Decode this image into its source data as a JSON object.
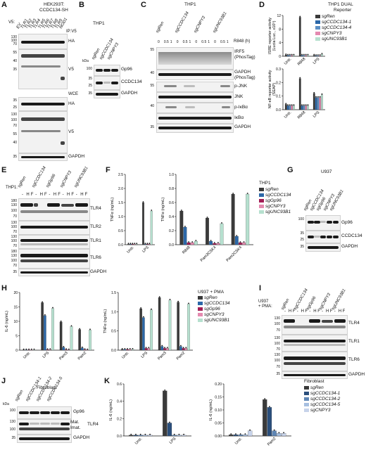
{
  "colors": {
    "sgRen": "#3a3a3a",
    "sgCCDC134": "#2b67a8",
    "sgCCDC134-4": "#5b8fc4",
    "sgGp96": "#a21d55",
    "sgCNPY3": "#e48ab0",
    "sgUNC93B1": "#b6e0cf",
    "sgCCDC134-1": "#2b4f7c",
    "sgCCDC134-2": "#5e86b5",
    "sgCCDC134-5": "#a6bfe0",
    "sgCNPY3_fib": "#c7d3ea"
  },
  "panels": {
    "A": {
      "letter": "A",
      "title": "HEK293T:",
      "title2": "CCDC134-SH",
      "ipv5": "IP:V5",
      "wce": "WCE",
      "v5": "V5:",
      "lanes": [
        "EV",
        "TLR1",
        "TLR2",
        "TLR3",
        "TLR4",
        "TLR5",
        "TLR6",
        "TLR7",
        "TLR8",
        "TLR9",
        "NOD1"
      ],
      "ha": "HA",
      "v5blot": "V5",
      "gapdh": "GAPDH",
      "mw_top": [
        "130",
        "100",
        "70",
        "55",
        "40",
        "35"
      ],
      "mw_ha": [
        "35",
        "25"
      ],
      "mw_v5": [
        "130",
        "100",
        "70",
        "55",
        "40"
      ],
      "mw_wce": [
        "35",
        "25",
        "130",
        "100",
        "70",
        "55",
        "40",
        "35"
      ]
    },
    "B": {
      "letter": "B",
      "title": "THP1",
      "lanes": [
        "sgRen",
        "sgCCDC134",
        "sgCNPY3"
      ],
      "rows": [
        "Gp96",
        "CCDC134",
        "GAPDH"
      ],
      "kda": "kDa",
      "mw": [
        "100",
        "35",
        "25",
        "35"
      ]
    },
    "C": {
      "letter": "C",
      "title": "THP1",
      "lanes": [
        "sgRen",
        "sgCCDC134",
        "sgCNPY3",
        "sgUNC93B1"
      ],
      "timepoints": [
        "0",
        "0.5",
        "1",
        "0",
        "0.5",
        "1",
        "0",
        "0.5",
        "1",
        "0",
        "0.5",
        "1"
      ],
      "r848": "R848 (h)",
      "rows": [
        "IRF5",
        "(PhosTag)",
        "GAPDH",
        "(PhosTag)",
        "p-JNK",
        "JNK",
        "p-IκBα",
        "IκBα",
        "GAPDH"
      ],
      "mw": [
        "55",
        "40",
        "55",
        "40",
        "35"
      ]
    },
    "D": {
      "letter": "D",
      "title": "THP1 DUAL",
      "title2": "Reporter",
      "legend": [
        "sgRen",
        "sgCCDC134-1",
        "sgCCDC134-4",
        "sgCNPY3",
        "sgUNC93B1"
      ],
      "ylabel_top": "ISRE reporter activity",
      "ylabel_top2": "(Lucia Luc., x10⁵)",
      "ylabel_bot": "NF-κB reporter activity",
      "ylabel_bot2": "(SEAP)",
      "ticks_top": [
        "0",
        "4",
        "8",
        "12"
      ],
      "ticks_bot": [
        "0.0",
        "0.1",
        "0.2",
        "0.3"
      ],
      "xcats": [
        "Untr.",
        "R848",
        "LPS"
      ]
    },
    "E": {
      "letter": "E",
      "title": "THP1:",
      "lanes": [
        "sgRen",
        "sgCCDC134",
        "sgGp96",
        "sgCNPY3",
        "sgUNC93B1"
      ],
      "hf": [
        "-",
        "H",
        "F",
        "-",
        "H",
        "F",
        "-",
        "H",
        "F",
        "-",
        "H",
        "F",
        "-",
        "H",
        "F"
      ],
      "rows": [
        "TLR4",
        "TLR2",
        "TLR1",
        "TLR6",
        "GAPDH"
      ],
      "mw": [
        "180",
        "130",
        "100",
        "70",
        "130",
        "100",
        "70",
        "130",
        "100",
        "70",
        "180",
        "130",
        "100",
        "70",
        "35"
      ]
    },
    "F": {
      "letter": "F",
      "legend_title": "THP1",
      "legend": [
        "sgRen",
        "sgCCDC134",
        "sgGp96",
        "sgCNPY3",
        "sgUNC93B1"
      ],
      "ylabel": "TNFα (ng/mL)",
      "ticks1": [
        "0.0",
        "0.5",
        "1.0",
        "1.5",
        "2.0",
        "2.5"
      ],
      "ticks2": [
        "0.0",
        "0.2",
        "0.4",
        "0.6",
        "0.8",
        "1.0"
      ],
      "xcats1": [
        "Untr.",
        "LPS"
      ],
      "xcats2": [
        "R848",
        "Pam3CSK4",
        "Pam2CSK4"
      ]
    },
    "G": {
      "letter": "G",
      "title": "U937",
      "lanes": [
        "sgRen",
        "sgCCDC134",
        "sgGp96",
        "sgCNPY3",
        "sgUNC93B1"
      ],
      "rows": [
        "Gp96",
        "CCDC134",
        "GAPDH"
      ],
      "mw": [
        "100",
        "35",
        "25",
        "35"
      ]
    },
    "H": {
      "letter": "H",
      "legend_title": "U937 + PMA",
      "legend": [
        "sgRen",
        "sgCCDC134",
        "sgGp96",
        "sgCNPY3",
        "sgUNC93B1"
      ],
      "ylabel1": "IL-6 (ng/mL)",
      "ylabel2": "TNFα (ng/mL)",
      "ticks1": [
        "0",
        "5",
        "10",
        "15",
        "20"
      ],
      "ticks2": [
        "0.0",
        "0.5",
        "1.0",
        "1.5"
      ],
      "xcats": [
        "Untr.",
        "LPS",
        "Pam3",
        "Pam2"
      ]
    },
    "I": {
      "letter": "I",
      "title": "U937",
      "title2": "+ PMA:",
      "lanes": [
        "sgRen",
        "sgCCDC134",
        "sgGp96",
        "sgCNPY3",
        "sgUNC93B1"
      ],
      "hf": [
        "-",
        "H",
        "F",
        "-",
        "H",
        "F",
        "-",
        "H",
        "F",
        "-",
        "H",
        "F",
        "-",
        "H",
        "F"
      ],
      "rows": [
        "TLR4",
        "TLR1",
        "TLR6",
        "GAPDH"
      ],
      "mw": [
        "130",
        "100",
        "70",
        "130",
        "100",
        "70",
        "130",
        "100",
        "70",
        "35"
      ]
    },
    "J": {
      "letter": "J",
      "title": "Fibroblast",
      "lanes": [
        "sgRen",
        "sgCCDC134-1",
        "sgCCDC134-2",
        "sgCCDC134-5"
      ],
      "rows": [
        "Gp96",
        "TLR4",
        "GAPDH"
      ],
      "mat": "Mat.",
      "imat": "Imat.",
      "kda": "kDa",
      "mw": [
        "100",
        "130",
        "100",
        "35"
      ]
    },
    "K": {
      "letter": "K",
      "legend_title": "Fibroblast",
      "legend": [
        "sgRen",
        "sgCCDC134-1",
        "sgCCDC134-2",
        "sgCCDC134-5",
        "sgCNPY3"
      ],
      "ylabel": "IL-6 (ng/mL)",
      "ticks1": [
        "0.0",
        "0.2",
        "0.4",
        "0.6"
      ],
      "ticks2": [
        "0.00",
        "0.05",
        "0.10",
        "0.15",
        "0.20"
      ],
      "xcats1": [
        "Untr.",
        "LPS"
      ],
      "xcats2": [
        "Untr.",
        "Pam2"
      ]
    }
  },
  "chart_data": [
    {
      "panel": "D-top",
      "type": "bar",
      "categories": [
        "Untr.",
        "R848",
        "LPS"
      ],
      "series": [
        {
          "name": "sgRen",
          "values": [
            0.4,
            11.5,
            0.3
          ]
        },
        {
          "name": "sgCCDC134-1",
          "values": [
            0.3,
            0.3,
            0.2
          ]
        },
        {
          "name": "sgCCDC134-4",
          "values": [
            0.3,
            0.3,
            0.2
          ]
        },
        {
          "name": "sgCNPY3",
          "values": [
            0.3,
            0.3,
            0.2
          ]
        },
        {
          "name": "sgUNC93B1",
          "values": [
            0.3,
            0.3,
            0.6
          ]
        }
      ],
      "ylabel": "ISRE reporter activity (Lucia Luc., x10⁵)",
      "ylim": [
        0,
        12
      ]
    },
    {
      "panel": "D-bottom",
      "type": "bar",
      "categories": [
        "Untr.",
        "R848",
        "LPS"
      ],
      "series": [
        {
          "name": "sgRen",
          "values": [
            0.04,
            0.23,
            0.12
          ]
        },
        {
          "name": "sgCCDC134-1",
          "values": [
            0.03,
            0.03,
            0.09
          ]
        },
        {
          "name": "sgCCDC134-4",
          "values": [
            0.03,
            0.03,
            0.09
          ]
        },
        {
          "name": "sgCNPY3",
          "values": [
            0.03,
            0.03,
            0.09
          ]
        },
        {
          "name": "sgUNC93B1",
          "values": [
            0.03,
            0.03,
            0.11
          ]
        }
      ],
      "ylabel": "NF-κB reporter activity (SEAP)",
      "ylim": [
        0,
        0.3
      ]
    },
    {
      "panel": "F-left",
      "type": "bar",
      "categories": [
        "Untr.",
        "LPS"
      ],
      "series": [
        {
          "name": "sgRen",
          "values": [
            0.02,
            1.5
          ]
        },
        {
          "name": "sgCCDC134",
          "values": [
            0.02,
            0.02
          ]
        },
        {
          "name": "sgGp96",
          "values": [
            0.02,
            0.02
          ]
        },
        {
          "name": "sgCNPY3",
          "values": [
            0.02,
            0.02
          ]
        },
        {
          "name": "sgUNC93B1",
          "values": [
            0.02,
            1.2
          ]
        }
      ],
      "ylabel": "TNFα (ng/mL)",
      "ylim": [
        0,
        2.5
      ]
    },
    {
      "panel": "F-right",
      "type": "bar",
      "categories": [
        "R848",
        "Pam3CSK4",
        "Pam2CSK4"
      ],
      "series": [
        {
          "name": "sgRen",
          "values": [
            0.48,
            0.38,
            0.72
          ]
        },
        {
          "name": "sgCCDC134",
          "values": [
            0.25,
            0.05,
            0.12
          ]
        },
        {
          "name": "sgGp96",
          "values": [
            0.03,
            0.02,
            0.03
          ]
        },
        {
          "name": "sgCNPY3",
          "values": [
            0.03,
            0.02,
            0.03
          ]
        },
        {
          "name": "sgUNC93B1",
          "values": [
            0.05,
            0.3,
            0.72
          ]
        }
      ],
      "ylabel": "TNFα (ng/mL)",
      "ylim": [
        0,
        1.0
      ]
    },
    {
      "panel": "H-left",
      "type": "bar",
      "categories": [
        "Untr.",
        "LPS",
        "Pam3",
        "Pam2"
      ],
      "series": [
        {
          "name": "sgRen",
          "values": [
            0.1,
            16.5,
            9.8,
            7.2
          ]
        },
        {
          "name": "sgCCDC134",
          "values": [
            0.1,
            12.0,
            1.0,
            0.8
          ]
        },
        {
          "name": "sgGp96",
          "values": [
            0.1,
            0.2,
            0.2,
            0.2
          ]
        },
        {
          "name": "sgCNPY3",
          "values": [
            0.1,
            0.2,
            0.1,
            0.1
          ]
        },
        {
          "name": "sgUNC93B1",
          "values": [
            0.1,
            14.5,
            8.2,
            7.0
          ]
        }
      ],
      "ylabel": "IL-6 (ng/mL)",
      "ylim": [
        0,
        20
      ]
    },
    {
      "panel": "H-right",
      "type": "bar",
      "categories": [
        "Untr.",
        "LPS",
        "Pam3",
        "Pam2"
      ],
      "series": [
        {
          "name": "sgRen",
          "values": [
            0.02,
            1.08,
            1.37,
            1.25
          ]
        },
        {
          "name": "sgCCDC134",
          "values": [
            0.02,
            0.85,
            0.1,
            0.1
          ]
        },
        {
          "name": "sgGp96",
          "values": [
            0.02,
            0.05,
            0.05,
            0.05
          ]
        },
        {
          "name": "sgCNPY3",
          "values": [
            0.02,
            0.05,
            0.05,
            0.05
          ]
        },
        {
          "name": "sgUNC93B1",
          "values": [
            0.02,
            1.05,
            1.3,
            1.2
          ]
        }
      ],
      "ylabel": "TNFα (ng/mL)",
      "ylim": [
        0,
        1.5
      ]
    },
    {
      "panel": "K-left",
      "type": "bar",
      "categories": [
        "Untr.",
        "LPS"
      ],
      "series": [
        {
          "name": "sgRen",
          "values": [
            0.01,
            0.52
          ]
        },
        {
          "name": "sgCCDC134-1",
          "values": [
            0.01,
            0.15
          ]
        },
        {
          "name": "sgCCDC134-2",
          "values": [
            0.01,
            0.01
          ]
        },
        {
          "name": "sgCCDC134-5",
          "values": [
            0.01,
            0.01
          ]
        },
        {
          "name": "sgCNPY3",
          "values": [
            0.01,
            0.01
          ]
        }
      ],
      "ylabel": "IL-6 (ng/mL)",
      "ylim": [
        0,
        0.6
      ]
    },
    {
      "panel": "K-right",
      "type": "bar",
      "categories": [
        "Untr.",
        "Pam2"
      ],
      "series": [
        {
          "name": "sgRen",
          "values": [
            0.005,
            0.14
          ]
        },
        {
          "name": "sgCCDC134-1",
          "values": [
            0.005,
            0.11
          ]
        },
        {
          "name": "sgCCDC134-2",
          "values": [
            0.005,
            0.02
          ]
        },
        {
          "name": "sgCCDC134-5",
          "values": [
            0.005,
            0.01
          ]
        },
        {
          "name": "sgCNPY3",
          "values": [
            0.02,
            0.01
          ]
        }
      ],
      "ylabel": "IL-6 (ng/mL)",
      "ylim": [
        0,
        0.2
      ]
    }
  ]
}
